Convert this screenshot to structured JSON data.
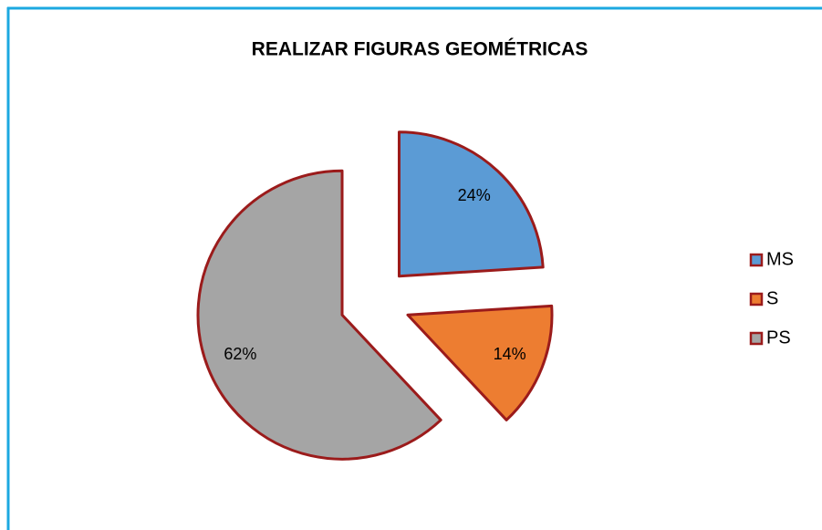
{
  "chart_data": {
    "type": "pie",
    "title": "REALIZAR FIGURAS GEOMÉTRICAS",
    "categories": [
      "MS",
      "S",
      "PS"
    ],
    "values": [
      24,
      14,
      62
    ],
    "value_labels": [
      "24%",
      "14%",
      "62%"
    ],
    "colors": [
      "#5b9bd5",
      "#ed7d31",
      "#a5a5a5"
    ],
    "legend": "right"
  }
}
